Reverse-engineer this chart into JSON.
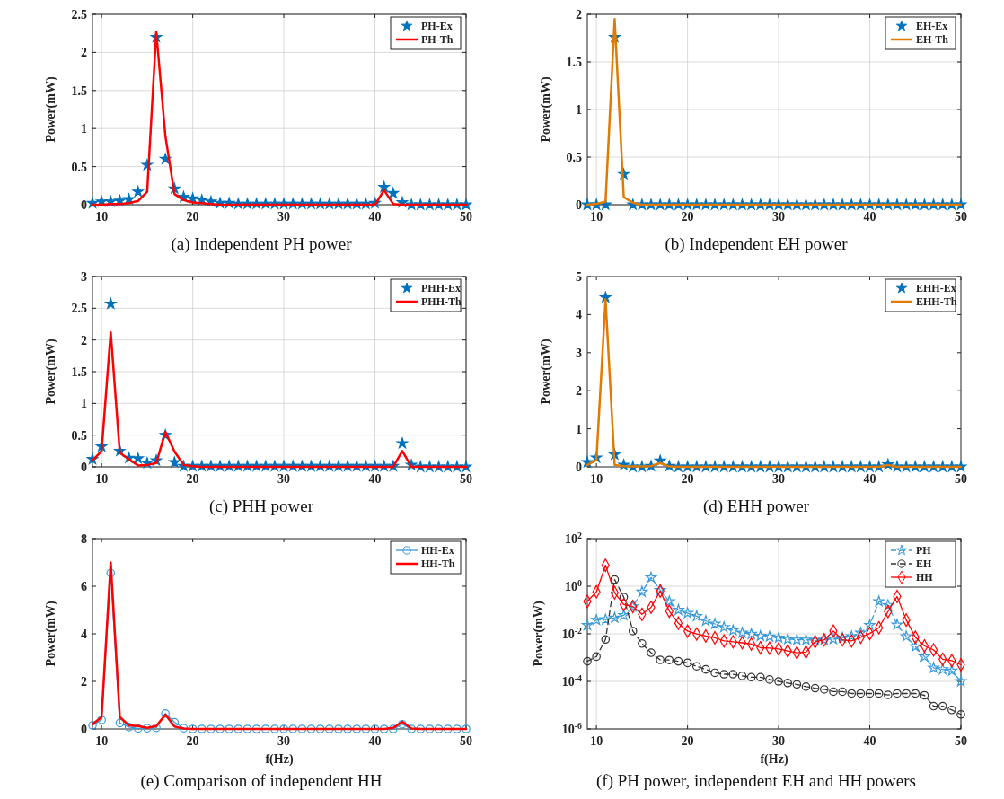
{
  "chart_data": [
    {
      "type": "line",
      "title": "(a) Independent PH power",
      "ylabel": "Power(mW)",
      "x": [
        9,
        10,
        11,
        12,
        13,
        14,
        15,
        16,
        17,
        18,
        19,
        20,
        21,
        22,
        23,
        24,
        25,
        26,
        27,
        28,
        29,
        30,
        31,
        32,
        33,
        34,
        35,
        36,
        37,
        38,
        39,
        40,
        41,
        42,
        43,
        44,
        45,
        46,
        47,
        48,
        49,
        50
      ],
      "xlim": [
        9,
        50
      ],
      "xticks": [
        10,
        20,
        30,
        40,
        50
      ],
      "ylim": [
        0,
        2.5
      ],
      "yticks": [
        0,
        0.5,
        1,
        1.5,
        2,
        2.5
      ],
      "grid": true,
      "legend": "top right",
      "series": [
        {
          "name": "PH-Ex",
          "type": "scatter",
          "marker": "star",
          "color": "#0072bd",
          "values": [
            0.02,
            0.04,
            0.04,
            0.05,
            0.07,
            0.17,
            0.52,
            2.2,
            0.6,
            0.21,
            0.1,
            0.08,
            0.06,
            0.04,
            0.02,
            0.02,
            0.01,
            0.01,
            0.01,
            0.01,
            0.01,
            0.01,
            0.01,
            0.01,
            0.01,
            0.01,
            0.01,
            0.01,
            0.01,
            0.01,
            0.01,
            0.02,
            0.23,
            0.15,
            0.03,
            0,
            0,
            0,
            0,
            0,
            0,
            0
          ]
        },
        {
          "name": "PH-Th",
          "color": "#ff0000",
          "values": [
            0,
            0,
            0.01,
            0.01,
            0.02,
            0.05,
            0.17,
            2.27,
            0.9,
            0.14,
            0.06,
            0.03,
            0.02,
            0.01,
            0,
            0,
            0,
            0,
            0,
            0,
            0,
            0,
            0,
            0,
            0,
            0,
            0,
            0,
            0,
            0,
            0,
            0,
            0.19,
            0.01,
            0,
            0,
            0,
            0,
            0,
            0,
            0,
            0
          ]
        }
      ]
    },
    {
      "type": "line",
      "title": "(b) Independent EH power",
      "ylabel": "Power(mW)",
      "x": [
        9,
        10,
        11,
        12,
        13,
        14,
        15,
        16,
        17,
        18,
        19,
        20,
        21,
        22,
        23,
        24,
        25,
        26,
        27,
        28,
        29,
        30,
        31,
        32,
        33,
        34,
        35,
        36,
        37,
        38,
        39,
        40,
        41,
        42,
        43,
        44,
        45,
        46,
        47,
        48,
        49,
        50
      ],
      "xlim": [
        9,
        50
      ],
      "xticks": [
        10,
        20,
        30,
        40,
        50
      ],
      "ylim": [
        0,
        2
      ],
      "yticks": [
        0,
        0.5,
        1,
        1.5,
        2
      ],
      "grid": true,
      "legend": "top right",
      "series": [
        {
          "name": "EH-Ex",
          "type": "scatter",
          "marker": "star",
          "color": "#0072bd",
          "values": [
            0,
            0,
            0,
            1.76,
            0.32,
            0,
            0,
            0,
            0,
            0,
            0,
            0,
            0,
            0,
            0,
            0,
            0,
            0,
            0,
            0,
            0,
            0,
            0,
            0,
            0,
            0,
            0,
            0,
            0,
            0,
            0,
            0,
            0,
            0,
            0,
            0,
            0,
            0,
            0,
            0,
            0,
            0
          ]
        },
        {
          "name": "EH-Th",
          "color": "#e07b00",
          "values": [
            0,
            0.01,
            0.03,
            1.95,
            0.08,
            0.02,
            0,
            0,
            0,
            0,
            0,
            0,
            0,
            0,
            0,
            0,
            0,
            0,
            0,
            0,
            0,
            0,
            0,
            0,
            0,
            0,
            0,
            0,
            0,
            0,
            0,
            0,
            0,
            0,
            0,
            0,
            0,
            0,
            0,
            0,
            0,
            0
          ]
        }
      ]
    },
    {
      "type": "line",
      "title": "(c) PHH power",
      "ylabel": "Power(mW)",
      "x": [
        9,
        10,
        11,
        12,
        13,
        14,
        15,
        16,
        17,
        18,
        19,
        20,
        21,
        22,
        23,
        24,
        25,
        26,
        27,
        28,
        29,
        30,
        31,
        32,
        33,
        34,
        35,
        36,
        37,
        38,
        39,
        40,
        41,
        42,
        43,
        44,
        45,
        46,
        47,
        48,
        49,
        50
      ],
      "xlim": [
        9,
        50
      ],
      "xticks": [
        10,
        20,
        30,
        40,
        50
      ],
      "ylim": [
        0,
        3
      ],
      "yticks": [
        0,
        0.5,
        1,
        1.5,
        2,
        2.5,
        3
      ],
      "grid": true,
      "legend": "top right",
      "series": [
        {
          "name": "PHH-Ex",
          "type": "scatter",
          "marker": "star",
          "color": "#0072bd",
          "values": [
            0.12,
            0.32,
            2.57,
            0.25,
            0.14,
            0.13,
            0.06,
            0.1,
            0.5,
            0.07,
            0.01,
            0.01,
            0.01,
            0.01,
            0.01,
            0.01,
            0.01,
            0.01,
            0.01,
            0.01,
            0.01,
            0.01,
            0.01,
            0.01,
            0.01,
            0.01,
            0.01,
            0.01,
            0.01,
            0.01,
            0.01,
            0.01,
            0.01,
            0.01,
            0.37,
            0.03,
            0,
            0,
            0,
            0,
            0,
            0
          ]
        },
        {
          "name": "PHH-Th",
          "color": "#ff0000",
          "values": [
            0.1,
            0.25,
            2.12,
            0.22,
            0.12,
            0.02,
            0.03,
            0.06,
            0.55,
            0.24,
            0.03,
            0.01,
            0,
            0,
            0,
            0,
            0,
            0,
            0,
            0,
            0,
            0,
            0,
            0,
            0,
            0,
            0,
            0,
            0,
            0,
            0,
            0,
            0,
            0,
            0.25,
            0,
            0,
            0,
            0,
            0,
            0,
            0
          ]
        }
      ]
    },
    {
      "type": "line",
      "title": "(d) EHH power",
      "ylabel": "Power(mW)",
      "x": [
        9,
        10,
        11,
        12,
        13,
        14,
        15,
        16,
        17,
        18,
        19,
        20,
        21,
        22,
        23,
        24,
        25,
        26,
        27,
        28,
        29,
        30,
        31,
        32,
        33,
        34,
        35,
        36,
        37,
        38,
        39,
        40,
        41,
        42,
        43,
        44,
        45,
        46,
        47,
        48,
        49,
        50
      ],
      "xlim": [
        9,
        50
      ],
      "xticks": [
        10,
        20,
        30,
        40,
        50
      ],
      "ylim": [
        0,
        5
      ],
      "yticks": [
        0,
        1,
        2,
        3,
        4,
        5
      ],
      "grid": false,
      "legend": "top right",
      "series": [
        {
          "name": "EHH-Ex",
          "type": "scatter",
          "marker": "star",
          "color": "#0072bd",
          "values": [
            0.12,
            0.24,
            4.45,
            0.32,
            0.05,
            0,
            0,
            0.02,
            0.16,
            0.02,
            0,
            0,
            0,
            0,
            0,
            0,
            0,
            0,
            0,
            0,
            0,
            0,
            0,
            0,
            0,
            0,
            0,
            0,
            0,
            0,
            0,
            0,
            0,
            0.06,
            0,
            0,
            0,
            0,
            0,
            0,
            0,
            0
          ]
        },
        {
          "name": "EHH-Th",
          "color": "#e07b00",
          "values": [
            0.05,
            0.18,
            4.4,
            0.05,
            0.02,
            0.01,
            0.01,
            0.02,
            0.1,
            0.01,
            0,
            0,
            0,
            0,
            0,
            0,
            0,
            0,
            0,
            0,
            0,
            0,
            0,
            0,
            0,
            0,
            0,
            0,
            0,
            0,
            0,
            0,
            0,
            0.05,
            0,
            0,
            0,
            0,
            0,
            0,
            0,
            0
          ]
        }
      ]
    },
    {
      "type": "line",
      "title": "(e) Comparison of independent HH",
      "ylabel": "Power(mW)",
      "xlabel": "f(Hz)",
      "x": [
        9,
        10,
        11,
        12,
        13,
        14,
        15,
        16,
        17,
        18,
        19,
        20,
        21,
        22,
        23,
        24,
        25,
        26,
        27,
        28,
        29,
        30,
        31,
        32,
        33,
        34,
        35,
        36,
        37,
        38,
        39,
        40,
        41,
        42,
        43,
        44,
        45,
        46,
        47,
        48,
        49,
        50
      ],
      "xlim": [
        9,
        50
      ],
      "xticks": [
        10,
        20,
        30,
        40,
        50
      ],
      "ylim": [
        0,
        8
      ],
      "yticks": [
        0,
        2,
        4,
        6,
        8
      ],
      "grid": false,
      "legend": "top right",
      "series": [
        {
          "name": "HH-Ex",
          "marker": "circle",
          "color": "#3a9ad9",
          "values": [
            0.15,
            0.38,
            6.55,
            0.25,
            0.08,
            0.02,
            0.03,
            0.05,
            0.65,
            0.28,
            0.03,
            0,
            0,
            0,
            0,
            0,
            0,
            0,
            0,
            0,
            0,
            0,
            0,
            0,
            0,
            0,
            0,
            0,
            0,
            0,
            0,
            0,
            0,
            0,
            0.2,
            0,
            0,
            0,
            0,
            0,
            0,
            0
          ]
        },
        {
          "name": "HH-Th",
          "color": "#ff0000",
          "values": [
            0.2,
            0.5,
            7.0,
            0.5,
            0.15,
            0.12,
            0.05,
            0.12,
            0.6,
            0.1,
            0.02,
            0,
            0,
            0,
            0,
            0,
            0,
            0,
            0,
            0,
            0,
            0,
            0,
            0,
            0,
            0,
            0,
            0,
            0,
            0,
            0,
            0,
            0,
            0.05,
            0.3,
            0.02,
            0,
            0,
            0,
            0,
            0,
            0
          ]
        }
      ]
    },
    {
      "type": "line",
      "title": "(f) PH power, independent EH and HH powers",
      "ylabel": "Power(mW)",
      "xlabel": "f(Hz)",
      "log": "y",
      "x": [
        9,
        10,
        11,
        12,
        13,
        14,
        15,
        16,
        17,
        18,
        19,
        20,
        21,
        22,
        23,
        24,
        25,
        26,
        27,
        28,
        29,
        30,
        31,
        32,
        33,
        34,
        35,
        36,
        37,
        38,
        39,
        40,
        41,
        42,
        43,
        44,
        45,
        46,
        47,
        48,
        49,
        50
      ],
      "xlim": [
        9,
        50
      ],
      "xticks": [
        10,
        20,
        30,
        40,
        50
      ],
      "ylim": [
        1e-06,
        100
      ],
      "yticks": [
        {
          "value": 1e-06,
          "label": "10$^{-6}$"
        },
        {
          "value": 0.0001,
          "label": "10$^{-4}$"
        },
        {
          "value": 0.01,
          "label": "10$^{-2}$"
        },
        {
          "value": 1,
          "label": "10$^{0}$"
        },
        {
          "value": 100,
          "label": "10$^{2}$"
        }
      ],
      "grid": true,
      "legend": "top right",
      "series": [
        {
          "name": "PH",
          "marker": "star",
          "line_style": "dashed",
          "color": "#3a9ad9",
          "values": [
            0.023,
            0.038,
            0.04,
            0.047,
            0.06,
            0.14,
            0.58,
            2.3,
            0.68,
            0.23,
            0.1,
            0.074,
            0.055,
            0.035,
            0.026,
            0.019,
            0.014,
            0.011,
            0.0098,
            0.0081,
            0.0076,
            0.0068,
            0.006,
            0.0056,
            0.0056,
            0.0053,
            0.0056,
            0.006,
            0.0068,
            0.0078,
            0.011,
            0.023,
            0.23,
            0.16,
            0.024,
            0.0078,
            0.0029,
            0.0011,
            0.00037,
            0.00032,
            0.00028,
            0.0001
          ]
        },
        {
          "name": "EH",
          "marker": "circle",
          "line_style": "dashed",
          "color": "#333333",
          "values": [
            0.0007,
            0.0011,
            0.0058,
            1.9,
            0.35,
            0.013,
            0.0039,
            0.0016,
            0.0008,
            0.00079,
            0.0007,
            0.0006,
            0.00043,
            0.00032,
            0.00023,
            0.0002,
            0.0002,
            0.00017,
            0.00015,
            0.00015,
            0.00012,
            0.0001,
            8.5e-05,
            7.5e-05,
            6e-05,
            5.2e-05,
            4.6e-05,
            3.7e-05,
            3.7e-05,
            3.1e-05,
            3.1e-05,
            3.1e-05,
            3.1e-05,
            2.7e-05,
            3.1e-05,
            3.1e-05,
            3.1e-05,
            2.6e-05,
            9.1e-06,
            9.1e-06,
            6.3e-06,
            4.1e-06
          ]
        },
        {
          "name": "HH",
          "marker": "diamond",
          "line_style": "solid",
          "color": "#ff0000",
          "values": [
            0.23,
            0.58,
            7.6,
            0.53,
            0.17,
            0.14,
            0.066,
            0.13,
            0.63,
            0.089,
            0.028,
            0.013,
            0.0098,
            0.0081,
            0.0068,
            0.005,
            0.0046,
            0.0042,
            0.0037,
            0.0026,
            0.0025,
            0.0023,
            0.0019,
            0.0016,
            0.0017,
            0.0046,
            0.0056,
            0.013,
            0.0056,
            0.005,
            0.0072,
            0.0103,
            0.018,
            0.086,
            0.37,
            0.038,
            0.0072,
            0.0031,
            0.0021,
            0.00085,
            0.00074,
            0.0005
          ]
        }
      ]
    }
  ]
}
